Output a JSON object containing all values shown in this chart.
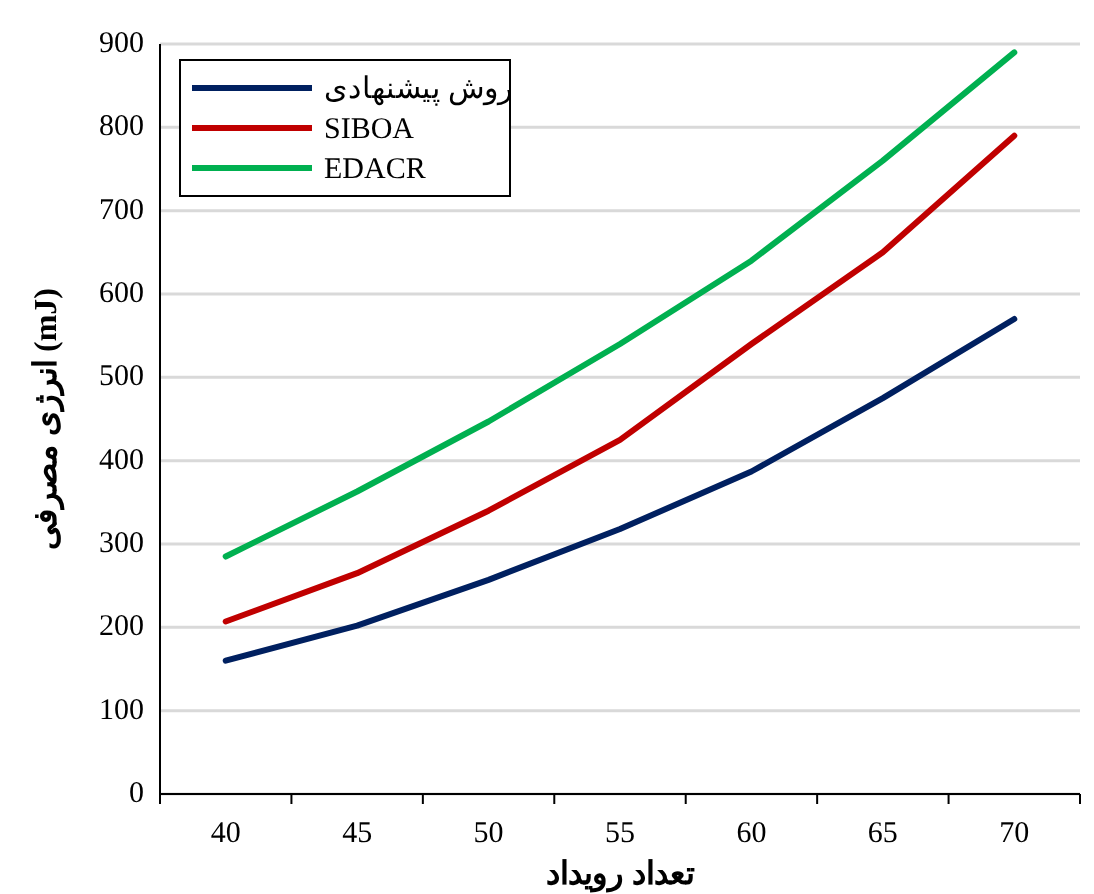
{
  "chart_data": {
    "type": "line",
    "xlabel": "تعداد رویداد",
    "ylabel": "انرژی مصرفی (mJ)",
    "categories": [
      "40",
      "45",
      "50",
      "55",
      "60",
      "65",
      "70"
    ],
    "series": [
      {
        "name": "روش پیشنهادی",
        "color": "#002060",
        "values": [
          160,
          202,
          257,
          318,
          387,
          475,
          570
        ]
      },
      {
        "name": "SIBOA",
        "color": "#c00000",
        "values": [
          207,
          265,
          340,
          425,
          540,
          650,
          790
        ]
      },
      {
        "name": "EDACR",
        "color": "#00b050",
        "values": [
          285,
          363,
          447,
          540,
          640,
          760,
          890
        ]
      }
    ],
    "ylim": [
      0,
      900
    ],
    "yticks": [
      0,
      100,
      200,
      300,
      400,
      500,
      600,
      700,
      800,
      900
    ],
    "legend": "top left",
    "grid": "y",
    "line_style": "solid"
  }
}
